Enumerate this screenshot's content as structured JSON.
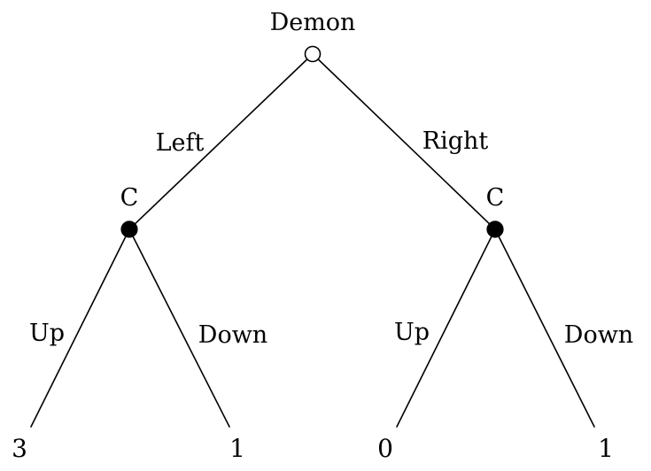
{
  "tree": {
    "root": {
      "label": "Demon",
      "type": "open"
    },
    "branches": {
      "left": "Left",
      "right": "Right"
    },
    "nodes": {
      "left": {
        "label": "C",
        "type": "filled"
      },
      "right": {
        "label": "C",
        "type": "filled"
      }
    },
    "sub_branches": {
      "left_up": "Up",
      "left_down": "Down",
      "right_up": "Up",
      "right_down": "Down"
    },
    "payoffs": [
      "3",
      "1",
      "0",
      "1"
    ]
  },
  "colors": {
    "line": "#000000",
    "open_node_fill": "#ffffff",
    "filled_node_fill": "#000000",
    "background": "#ffffff"
  }
}
